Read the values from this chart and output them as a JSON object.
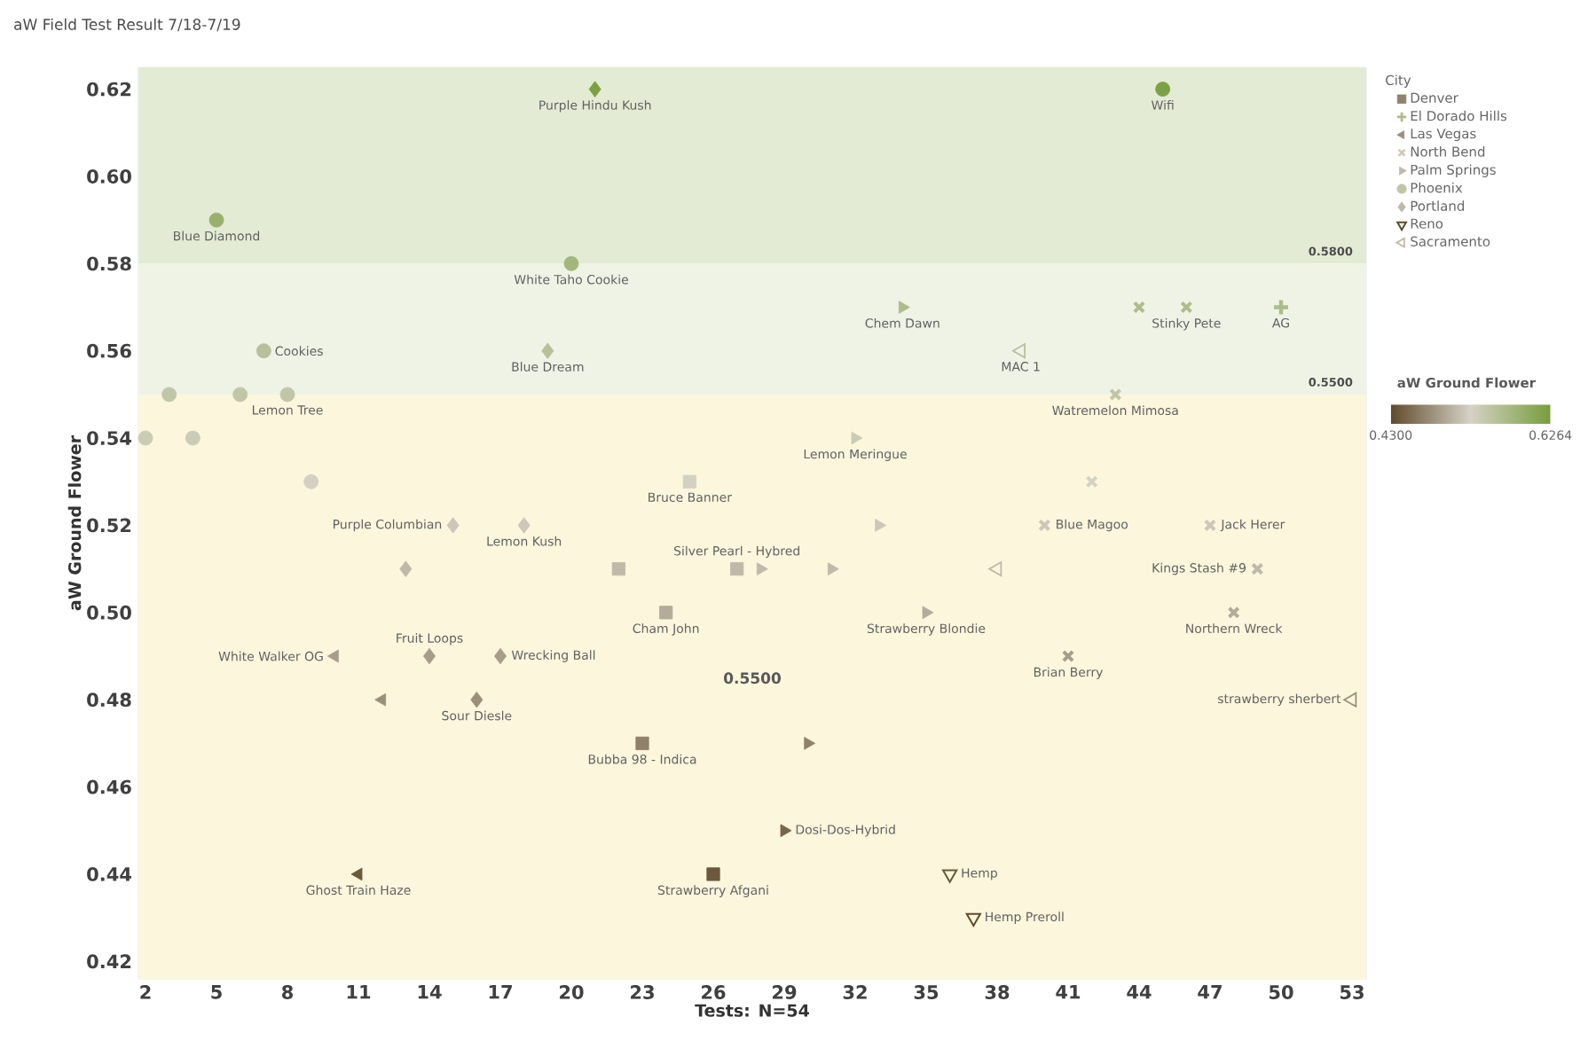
{
  "chart_data": {
    "type": "scatter",
    "title": "aW Field Test Result 7/18-7/19",
    "xlabel": "Tests: N=54",
    "ylabel": "aW Ground Flower",
    "legend_title": "City",
    "clabel": "aW Ground Flower",
    "xlim": [
      1.7,
      53.6
    ],
    "ylim": [
      0.416,
      0.625
    ],
    "xticks": [
      2,
      5,
      8,
      11,
      14,
      17,
      20,
      23,
      26,
      29,
      32,
      35,
      38,
      41,
      44,
      47,
      50,
      53
    ],
    "yticks": [
      {
        "value": 0.42,
        "label": "0.42"
      },
      {
        "value": 0.44,
        "label": "0.44"
      },
      {
        "value": 0.46,
        "label": "0.46"
      },
      {
        "value": 0.48,
        "label": "0.48"
      },
      {
        "value": 0.5,
        "label": "0.50"
      },
      {
        "value": 0.52,
        "label": "0.52"
      },
      {
        "value": 0.54,
        "label": "0.54"
      },
      {
        "value": 0.56,
        "label": "0.56"
      },
      {
        "value": 0.58,
        "label": "0.58"
      },
      {
        "value": 0.6,
        "label": "0.60"
      },
      {
        "value": 0.62,
        "label": "0.62"
      }
    ],
    "clim": [
      0.43,
      0.6264
    ],
    "cticks": [
      {
        "value": 0.43,
        "label": "0.4300"
      },
      {
        "value": 0.6264,
        "label": "0.6264"
      }
    ],
    "legend": "top right",
    "grid": false,
    "series": [
      {
        "name": "Denver",
        "marker": "square",
        "x": [
          22,
          24,
          25,
          23,
          26,
          27
        ],
        "values": [
          0.51,
          0.5,
          0.53,
          0.47,
          0.44,
          0.51
        ],
        "cvalues": [
          0.51,
          0.5,
          0.53,
          0.47,
          0.44,
          0.51
        ],
        "colors": [
          "#c0b9aa",
          "#b4ab9a",
          "#d4d1c3",
          "#90816b",
          "#6c583c",
          "#c0b9aa"
        ]
      },
      {
        "name": "El Dorado Hills",
        "marker": "plus",
        "x": [
          50
        ],
        "values": [
          0.57
        ],
        "cvalues": [
          0.57
        ],
        "colors": [
          "#adbc8a"
        ]
      },
      {
        "name": "Las Vegas",
        "marker": "triangle-left",
        "x": [
          10,
          12,
          11
        ],
        "values": [
          0.49,
          0.48,
          0.44
        ],
        "cvalues": [
          0.49,
          0.48,
          0.44
        ],
        "colors": [
          "#a89d8a",
          "#9c8f7a",
          "#6c583c"
        ]
      },
      {
        "name": "North Bend",
        "marker": "cross",
        "x": [
          44,
          46,
          43,
          42,
          40,
          47,
          49,
          48,
          41
        ],
        "values": [
          0.57,
          0.57,
          0.55,
          0.53,
          0.52,
          0.52,
          0.51,
          0.5,
          0.49
        ],
        "cvalues": [
          0.57,
          0.57,
          0.55,
          0.53,
          0.52,
          0.52,
          0.51,
          0.5,
          0.49
        ],
        "colors": [
          "#adbc8a",
          "#adbc8a",
          "#c1c6a7",
          "#d4d1c3",
          "#ccc7b9",
          "#ccc7b9",
          "#c0b9aa",
          "#b4ab9a",
          "#a89d8a"
        ]
      },
      {
        "name": "Palm Springs",
        "marker": "triangle-right",
        "x": [
          34,
          32,
          33,
          31,
          28,
          35,
          30,
          29
        ],
        "values": [
          0.57,
          0.54,
          0.52,
          0.51,
          0.51,
          0.5,
          0.47,
          0.45
        ],
        "cvalues": [
          0.57,
          0.54,
          0.52,
          0.51,
          0.51,
          0.5,
          0.47,
          0.45
        ],
        "colors": [
          "#adbc8a",
          "#cbccb6",
          "#ccc7b9",
          "#c0b9aa",
          "#c0b9aa",
          "#b4ab9a",
          "#90816b",
          "#78664b"
        ]
      },
      {
        "name": "Phoenix",
        "marker": "circle",
        "x": [
          45,
          5,
          20,
          7,
          3,
          6,
          8,
          2,
          4,
          9
        ],
        "values": [
          0.62,
          0.59,
          0.58,
          0.56,
          0.55,
          0.55,
          0.55,
          0.54,
          0.54,
          0.53
        ],
        "cvalues": [
          0.62,
          0.59,
          0.58,
          0.56,
          0.55,
          0.55,
          0.55,
          0.54,
          0.54,
          0.53
        ],
        "colors": [
          "#7ca143",
          "#9ab16e",
          "#a3b77c",
          "#b7c199",
          "#c1c6a7",
          "#c1c6a7",
          "#c1c6a7",
          "#cbccb6",
          "#cbccb6",
          "#d4d1c3"
        ]
      },
      {
        "name": "Portland",
        "marker": "diamond",
        "x": [
          21,
          19,
          15,
          18,
          13,
          14,
          17,
          16
        ],
        "values": [
          0.62,
          0.56,
          0.52,
          0.52,
          0.51,
          0.49,
          0.49,
          0.48
        ],
        "cvalues": [
          0.62,
          0.56,
          0.52,
          0.52,
          0.51,
          0.49,
          0.49,
          0.48
        ],
        "colors": [
          "#7ca143",
          "#b7c199",
          "#ccc7b9",
          "#ccc7b9",
          "#c0b9aa",
          "#a89d8a",
          "#a89d8a",
          "#9c8f7a"
        ]
      },
      {
        "name": "Reno",
        "marker": "triangle-down-open",
        "x": [
          36,
          37
        ],
        "values": [
          0.44,
          0.43
        ],
        "cvalues": [
          0.44,
          0.43
        ],
        "colors": [
          "#6c583c",
          "#604a2c"
        ]
      },
      {
        "name": "Sacramento",
        "marker": "triangle-left-open",
        "x": [
          39,
          38,
          53
        ],
        "values": [
          0.56,
          0.51,
          0.48
        ],
        "cvalues": [
          0.56,
          0.51,
          0.48
        ],
        "colors": [
          "#b7c199",
          "#c0b9aa",
          "#9c8f7a"
        ]
      }
    ],
    "bands": [
      {
        "axis": "y",
        "from": 0.58,
        "to": 0.625,
        "color": "#e4ebd4",
        "label": "0.5800"
      },
      {
        "axis": "y",
        "from": 0.55,
        "to": 0.58,
        "color": "#eff3e6",
        "label": "0.5500"
      },
      {
        "axis": "y",
        "from": 0.416,
        "to": 0.55,
        "color": "#fbf6dc"
      }
    ],
    "annotations": [
      {
        "text": "Purple Hindu Kush",
        "x": 21,
        "y": 0.62
      },
      {
        "text": "Wifi",
        "x": 45,
        "y": 0.62
      },
      {
        "text": "Blue Diamond",
        "x": 5,
        "y": 0.59
      },
      {
        "text": "White Taho Cookie",
        "x": 20,
        "y": 0.58
      },
      {
        "text": "Cookies",
        "x": 7,
        "y": 0.56
      },
      {
        "text": "Blue Dream",
        "x": 19,
        "y": 0.56
      },
      {
        "text": "Lemon Tree",
        "x": 8,
        "y": 0.55
      },
      {
        "text": "Chem Dawn",
        "x": 34,
        "y": 0.57
      },
      {
        "text": "Stinky Pete",
        "x": 46,
        "y": 0.57
      },
      {
        "text": "AG",
        "x": 50,
        "y": 0.57
      },
      {
        "text": "MAC 1",
        "x": 39,
        "y": 0.56
      },
      {
        "text": "Watremelon Mimosa",
        "x": 43,
        "y": 0.55
      },
      {
        "text": "Lemon Meringue",
        "x": 32,
        "y": 0.54
      },
      {
        "text": "Bruce Banner",
        "x": 25,
        "y": 0.53
      },
      {
        "text": "Silver Pearl - Hybred",
        "x": 27,
        "y": 0.51
      },
      {
        "text": "Purple Columbian",
        "x": 15,
        "y": 0.52
      },
      {
        "text": "Lemon Kush",
        "x": 18,
        "y": 0.52
      },
      {
        "text": "Blue Magoo",
        "x": 40,
        "y": 0.52
      },
      {
        "text": "Jack Herer",
        "x": 47,
        "y": 0.52
      },
      {
        "text": "Kings Stash #9",
        "x": 49,
        "y": 0.51
      },
      {
        "text": "Cham John",
        "x": 24,
        "y": 0.5
      },
      {
        "text": "Strawberry Blondie",
        "x": 35,
        "y": 0.5
      },
      {
        "text": "Northern Wreck",
        "x": 48,
        "y": 0.5
      },
      {
        "text": "Fruit Loops",
        "x": 14,
        "y": 0.49
      },
      {
        "text": "White Walker OG",
        "x": 10,
        "y": 0.49
      },
      {
        "text": "Wrecking Ball",
        "x": 17,
        "y": 0.49
      },
      {
        "text": "Brian Berry",
        "x": 41,
        "y": 0.49
      },
      {
        "text": "Sour Diesle",
        "x": 16,
        "y": 0.48
      },
      {
        "text": "strawberry sherbert",
        "x": 53,
        "y": 0.48
      },
      {
        "text": "Bubba 98 - Indica",
        "x": 23,
        "y": 0.47
      },
      {
        "text": "Dosi-Dos-Hybrid",
        "x": 29,
        "y": 0.45
      },
      {
        "text": "Ghost Train Haze",
        "x": 11,
        "y": 0.44
      },
      {
        "text": "Strawberry Afgani",
        "x": 26,
        "y": 0.44
      },
      {
        "text": "Hemp",
        "x": 36,
        "y": 0.44
      },
      {
        "text": "Hemp Preroll",
        "x": 37,
        "y": 0.43
      },
      "0.5500"
    ]
  }
}
